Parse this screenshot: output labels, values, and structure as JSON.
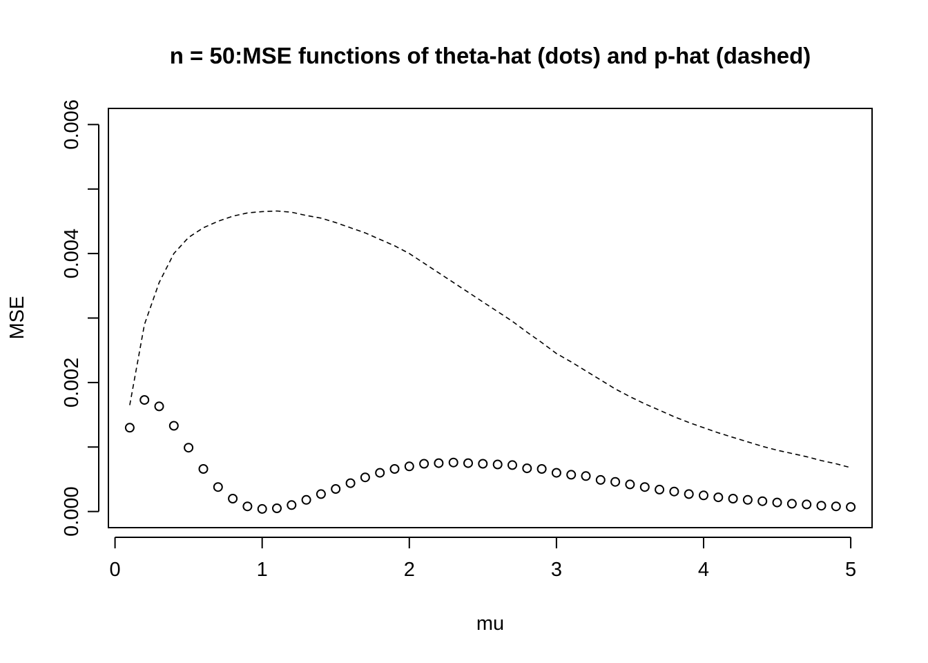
{
  "chart_data": {
    "type": "scatter",
    "title": "n = 50:MSE functions of theta-hat (dots) and p-hat (dashed)",
    "xlabel": "mu",
    "ylabel": "MSE",
    "xlim": [
      -0.045,
      5.145
    ],
    "ylim": [
      -0.00025,
      0.00625
    ],
    "xticks": [
      0,
      1,
      2,
      3,
      4,
      5
    ],
    "xtick_labels": [
      "0",
      "1",
      "2",
      "3",
      "4",
      "5"
    ],
    "yticks": [
      0,
      0.001,
      0.002,
      0.003,
      0.004,
      0.005,
      0.006
    ],
    "ytick_labels": [
      "0.000",
      "",
      "0.002",
      "",
      "0.004",
      "",
      "0.006"
    ],
    "grid": false,
    "series": [
      {
        "style": "points",
        "x": [
          0.1,
          0.2,
          0.3,
          0.4,
          0.5,
          0.6,
          0.7,
          0.8,
          0.9,
          1.0,
          1.1,
          1.2,
          1.3,
          1.4,
          1.5,
          1.6,
          1.7,
          1.8,
          1.9,
          2.0,
          2.1,
          2.2,
          2.3,
          2.4,
          2.5,
          2.6,
          2.7,
          2.8,
          2.9,
          3.0,
          3.1,
          3.2,
          3.3,
          3.4,
          3.5,
          3.6,
          3.7,
          3.8,
          3.9,
          4.0,
          4.1,
          4.2,
          4.3,
          4.4,
          4.5,
          4.6,
          4.7,
          4.8,
          4.9,
          5.0
        ],
        "values": [
          0.0013,
          0.00173,
          0.00163,
          0.00133,
          0.00099,
          0.00066,
          0.00038,
          0.0002,
          8e-05,
          4e-05,
          5e-05,
          0.0001,
          0.00018,
          0.00027,
          0.00035,
          0.00044,
          0.00053,
          0.0006,
          0.00066,
          0.0007,
          0.00074,
          0.00075,
          0.00076,
          0.00075,
          0.00074,
          0.00073,
          0.00072,
          0.00067,
          0.00066,
          0.0006,
          0.00057,
          0.00055,
          0.00049,
          0.00046,
          0.00042,
          0.00038,
          0.00034,
          0.00031,
          0.00027,
          0.00025,
          0.00022,
          0.0002,
          0.00018,
          0.00016,
          0.00014,
          0.00012,
          0.00011,
          9e-05,
          8e-05,
          7e-05
        ]
      },
      {
        "style": "dashed-line",
        "x": [
          0.1,
          0.2,
          0.3,
          0.4,
          0.5,
          0.6,
          0.7,
          0.8,
          0.9,
          1.0,
          1.1,
          1.2,
          1.3,
          1.4,
          1.5,
          1.6,
          1.7,
          1.8,
          1.9,
          2.0,
          2.1,
          2.2,
          2.3,
          2.4,
          2.5,
          2.6,
          2.7,
          2.8,
          2.9,
          3.0,
          3.1,
          3.2,
          3.3,
          3.4,
          3.5,
          3.6,
          3.7,
          3.8,
          3.9,
          4.0,
          4.1,
          4.2,
          4.3,
          4.4,
          4.5,
          4.6,
          4.7,
          4.8,
          4.9,
          5.0
        ],
        "values": [
          0.00165,
          0.0029,
          0.00355,
          0.004,
          0.00425,
          0.0044,
          0.0045,
          0.00458,
          0.00463,
          0.00465,
          0.00466,
          0.00464,
          0.00459,
          0.00455,
          0.00448,
          0.0044,
          0.00432,
          0.00422,
          0.00412,
          0.004,
          0.00385,
          0.0037,
          0.00355,
          0.0034,
          0.00325,
          0.0031,
          0.00295,
          0.00278,
          0.00262,
          0.00245,
          0.00232,
          0.00218,
          0.00204,
          0.0019,
          0.00178,
          0.00167,
          0.00157,
          0.00147,
          0.00138,
          0.0013,
          0.00122,
          0.00115,
          0.00108,
          0.00101,
          0.00095,
          0.0009,
          0.00085,
          0.00079,
          0.00074,
          0.00068
        ]
      }
    ]
  }
}
